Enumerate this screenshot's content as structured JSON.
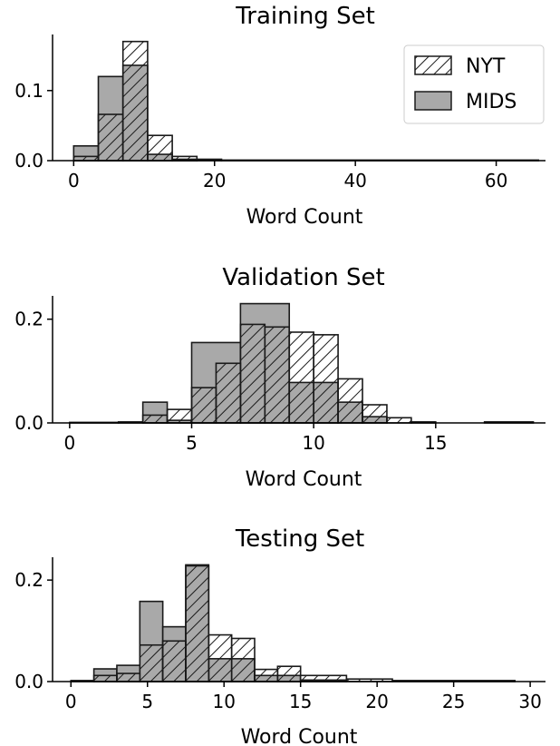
{
  "legend": {
    "entries": [
      {
        "label": "NYT",
        "style": "hatched"
      },
      {
        "label": "MIDS",
        "style": "gray"
      }
    ],
    "placement": "top-right",
    "panel": 0
  },
  "colors": {
    "mids_fill": "#a9a9a9",
    "edge": "#1a1a1a",
    "hatch": "#1a1a1a",
    "background": "#ffffff"
  },
  "chart_data": [
    {
      "type": "histogram",
      "title": "Training Set",
      "xlabel": "Word Count",
      "ylabel": "",
      "xlim": [
        -3,
        67
      ],
      "ylim": [
        0,
        0.18
      ],
      "xticks": [
        0,
        20,
        40,
        60
      ],
      "yticks": [
        0.0,
        0.1
      ],
      "ytick_labels": [
        "0.0",
        "0.1"
      ],
      "grid": false,
      "series": [
        {
          "name": "MIDS",
          "bins": [
            {
              "x0": 0,
              "x1": 3.5,
              "y": 0.021
            },
            {
              "x0": 3.5,
              "x1": 7,
              "y": 0.12
            },
            {
              "x0": 7,
              "x1": 10.5,
              "y": 0.136
            },
            {
              "x0": 10.5,
              "x1": 14,
              "y": 0.009
            },
            {
              "x0": 14,
              "x1": 17.5,
              "y": 0.002
            }
          ]
        },
        {
          "name": "NYT",
          "bins": [
            {
              "x0": 0,
              "x1": 3.5,
              "y": 0.006
            },
            {
              "x0": 3.5,
              "x1": 7,
              "y": 0.066
            },
            {
              "x0": 7,
              "x1": 10.5,
              "y": 0.17
            },
            {
              "x0": 10.5,
              "x1": 14,
              "y": 0.036
            },
            {
              "x0": 14,
              "x1": 17.5,
              "y": 0.006
            },
            {
              "x0": 17.5,
              "x1": 21,
              "y": 0.002
            },
            {
              "x0": 21,
              "x1": 66,
              "y": 0.0008
            }
          ]
        }
      ]
    },
    {
      "type": "histogram",
      "title": "Validation Set",
      "xlabel": "Word Count",
      "ylabel": "",
      "xlim": [
        -0.7,
        19.5
      ],
      "ylim": [
        0,
        0.245
      ],
      "xticks": [
        0,
        5,
        10,
        15
      ],
      "yticks": [
        0.0,
        0.2
      ],
      "ytick_labels": [
        "0.0",
        "0.2"
      ],
      "grid": false,
      "series": [
        {
          "name": "MIDS",
          "bins": [
            {
              "x0": 3,
              "x1": 4,
              "y": 0.04
            },
            {
              "x0": 4,
              "x1": 5,
              "y": 0.005
            },
            {
              "x0": 5,
              "x1": 7,
              "y": 0.155
            },
            {
              "x0": 7,
              "x1": 9,
              "y": 0.23
            },
            {
              "x0": 9,
              "x1": 11,
              "y": 0.078
            },
            {
              "x0": 11,
              "x1": 12,
              "y": 0.04
            },
            {
              "x0": 12,
              "x1": 13,
              "y": 0.012
            }
          ]
        },
        {
          "name": "NYT",
          "bins": [
            {
              "x0": 0,
              "x1": 2,
              "y": 0.0005
            },
            {
              "x0": 2,
              "x1": 3,
              "y": 0.002
            },
            {
              "x0": 3,
              "x1": 4,
              "y": 0.015
            },
            {
              "x0": 4,
              "x1": 5,
              "y": 0.026
            },
            {
              "x0": 5,
              "x1": 6,
              "y": 0.068
            },
            {
              "x0": 6,
              "x1": 7,
              "y": 0.115
            },
            {
              "x0": 7,
              "x1": 8,
              "y": 0.19
            },
            {
              "x0": 8,
              "x1": 9,
              "y": 0.185
            },
            {
              "x0": 9,
              "x1": 10,
              "y": 0.175
            },
            {
              "x0": 10,
              "x1": 11,
              "y": 0.17
            },
            {
              "x0": 11,
              "x1": 12,
              "y": 0.085
            },
            {
              "x0": 12,
              "x1": 13,
              "y": 0.035
            },
            {
              "x0": 13,
              "x1": 14,
              "y": 0.01
            },
            {
              "x0": 14,
              "x1": 15,
              "y": 0.002
            },
            {
              "x0": 17,
              "x1": 19,
              "y": 0.002
            }
          ]
        }
      ]
    },
    {
      "type": "histogram",
      "title": "Testing Set",
      "xlabel": "Word Count",
      "ylabel": "",
      "xlim": [
        -1.2,
        31
      ],
      "ylim": [
        0,
        0.245
      ],
      "xticks": [
        0,
        5,
        10,
        15,
        20,
        25,
        30
      ],
      "yticks": [
        0.0,
        0.2
      ],
      "ytick_labels": [
        "0.0",
        "0.2"
      ],
      "grid": false,
      "series": [
        {
          "name": "MIDS",
          "bins": [
            {
              "x0": 1.5,
              "x1": 3,
              "y": 0.025
            },
            {
              "x0": 3,
              "x1": 4.5,
              "y": 0.032
            },
            {
              "x0": 4.5,
              "x1": 6,
              "y": 0.158
            },
            {
              "x0": 6,
              "x1": 7.5,
              "y": 0.108
            },
            {
              "x0": 7.5,
              "x1": 9,
              "y": 0.228
            },
            {
              "x0": 9,
              "x1": 12,
              "y": 0.045
            },
            {
              "x0": 12,
              "x1": 15,
              "y": 0.012
            },
            {
              "x0": 15,
              "x1": 18,
              "y": 0.003
            }
          ]
        },
        {
          "name": "NYT",
          "bins": [
            {
              "x0": 0,
              "x1": 1.5,
              "y": 0.002
            },
            {
              "x0": 1.5,
              "x1": 3,
              "y": 0.012
            },
            {
              "x0": 3,
              "x1": 4.5,
              "y": 0.016
            },
            {
              "x0": 4.5,
              "x1": 6,
              "y": 0.072
            },
            {
              "x0": 6,
              "x1": 7.5,
              "y": 0.08
            },
            {
              "x0": 7.5,
              "x1": 9,
              "y": 0.23
            },
            {
              "x0": 9,
              "x1": 10.5,
              "y": 0.092
            },
            {
              "x0": 10.5,
              "x1": 12,
              "y": 0.085
            },
            {
              "x0": 12,
              "x1": 13.5,
              "y": 0.024
            },
            {
              "x0": 13.5,
              "x1": 15,
              "y": 0.03
            },
            {
              "x0": 15,
              "x1": 18,
              "y": 0.012
            },
            {
              "x0": 18,
              "x1": 21,
              "y": 0.005
            },
            {
              "x0": 21,
              "x1": 29,
              "y": 0.002
            }
          ]
        }
      ]
    }
  ]
}
